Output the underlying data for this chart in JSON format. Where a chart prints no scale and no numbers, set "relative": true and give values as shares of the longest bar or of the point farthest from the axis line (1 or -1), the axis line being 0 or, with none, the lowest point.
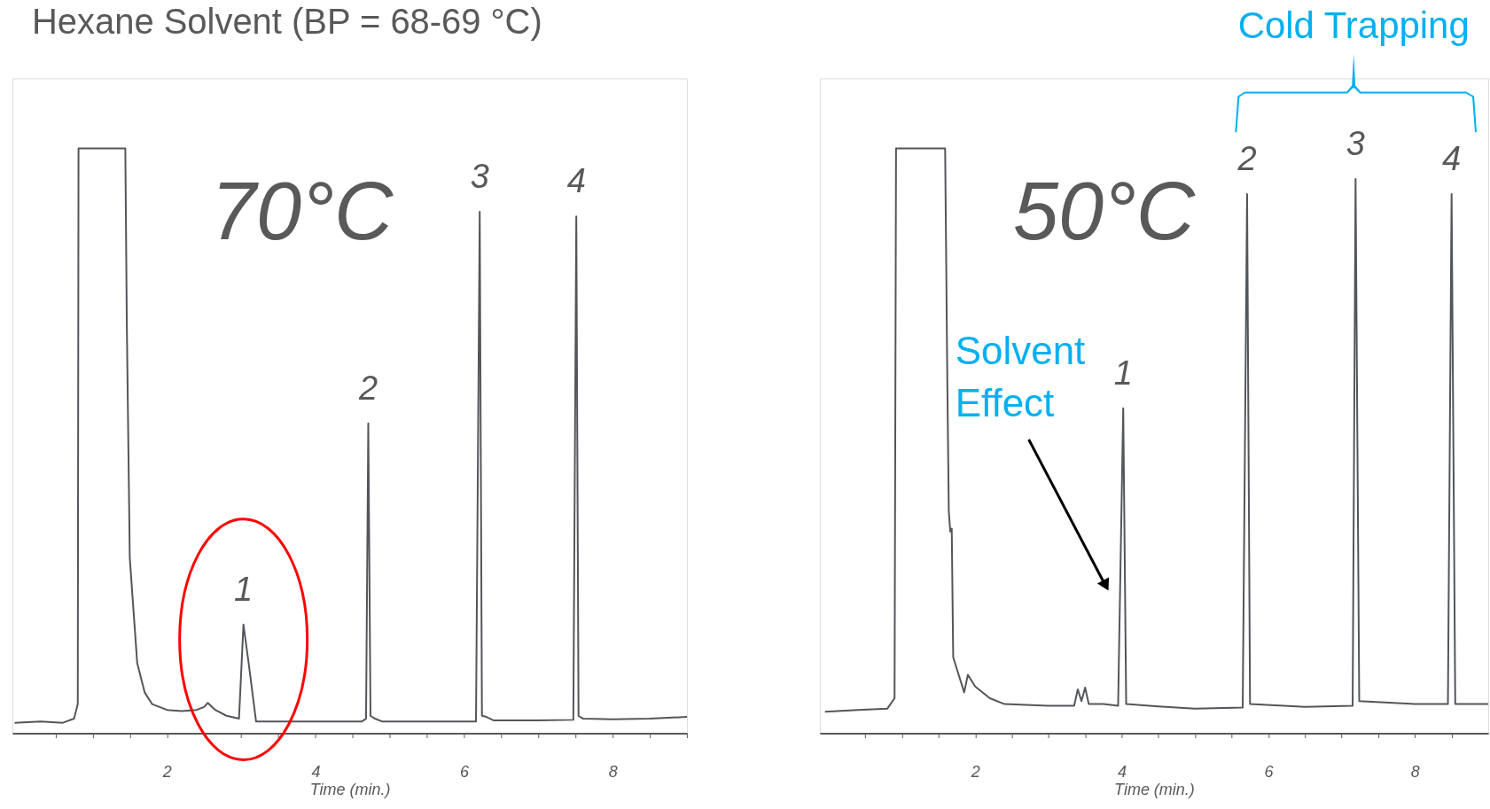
{
  "chart_data": [
    {
      "type": "line",
      "title": "Hexane Solvent (BP = 68-69 °C)",
      "xlabel": "Time (min.)",
      "relative": true,
      "xlim": [
        -0.08,
        9
      ],
      "xticks": [
        {
          "value": 0.5,
          "label": null
        },
        {
          "value": 1,
          "label": null
        },
        {
          "value": 1.5,
          "label": null
        },
        2,
        {
          "value": 2.5,
          "label": null
        },
        {
          "value": 3,
          "label": null
        },
        {
          "value": 3.5,
          "label": null
        },
        4,
        {
          "value": 4.5,
          "label": null
        },
        {
          "value": 5,
          "label": null
        },
        {
          "value": 5.5,
          "label": null
        },
        6,
        {
          "value": 6.5,
          "label": null
        },
        {
          "value": 7,
          "label": null
        },
        {
          "value": 7.5,
          "label": null
        },
        8,
        {
          "value": 8.5,
          "label": null
        },
        {
          "value": 9,
          "label": null
        }
      ],
      "annotations": [
        "70°C",
        {
          "text": "1",
          "x": 3.03,
          "y": 0.186
        },
        {
          "text": "2",
          "x": 4.71,
          "y": 0.53
        },
        {
          "text": "3",
          "x": 6.21,
          "y": 0.892
        },
        {
          "text": "4",
          "x": 7.51,
          "y": 0.884
        }
      ],
      "series": [
        {
          "color": "#53565a",
          "x": [
            -0.05,
            0.3,
            0.6,
            0.75,
            0.8,
            0.81,
            1.44,
            1.46,
            1.5,
            1.6,
            1.7,
            1.8,
            2.0,
            2.2,
            2.4,
            2.5,
            2.55,
            2.65,
            2.8,
            2.97,
            3.03,
            3.1,
            3.16,
            3.2,
            3.5,
            4.0,
            4.62,
            4.68,
            4.71,
            4.74,
            4.8,
            4.9,
            5.5,
            6.16,
            6.21,
            6.24,
            6.3,
            6.4,
            7.0,
            7.47,
            7.51,
            7.54,
            7.6,
            8.0,
            8.5,
            9.0
          ],
          "values": [
            0.018,
            0.02,
            0.018,
            0.025,
            0.05,
            1.0,
            1.0,
            0.7,
            0.3,
            0.12,
            0.07,
            0.05,
            0.04,
            0.038,
            0.04,
            0.045,
            0.052,
            0.04,
            0.03,
            0.025,
            0.186,
            0.12,
            0.06,
            0.02,
            0.02,
            0.02,
            0.02,
            0.025,
            0.53,
            0.03,
            0.025,
            0.02,
            0.02,
            0.02,
            0.892,
            0.03,
            0.028,
            0.022,
            0.022,
            0.023,
            0.884,
            0.03,
            0.025,
            0.024,
            0.025,
            0.028
          ]
        }
      ]
    },
    {
      "type": "line",
      "xlabel": "Time (min.)",
      "relative": true,
      "xlim": [
        -0.12,
        9
      ],
      "xticks": [
        {
          "value": 0.5,
          "label": null
        },
        {
          "value": 1,
          "label": null
        },
        {
          "value": 1.5,
          "label": null
        },
        2,
        {
          "value": 2.5,
          "label": null
        },
        {
          "value": 3,
          "label": null
        },
        {
          "value": 3.5,
          "label": null
        },
        4,
        {
          "value": 4.5,
          "label": null
        },
        {
          "value": 5,
          "label": null
        },
        {
          "value": 5.5,
          "label": null
        },
        6,
        {
          "value": 6.5,
          "label": null
        },
        {
          "value": 7,
          "label": null
        },
        {
          "value": 7.5,
          "label": null
        },
        8,
        {
          "value": 8.5,
          "label": null
        }
      ],
      "annotations": [
        "50°C",
        "Solvent\nEffect",
        "Cold Trapping",
        {
          "text": "1",
          "x": 4.02,
          "y": 0.556
        },
        {
          "text": "2",
          "x": 5.71,
          "y": 0.922
        },
        {
          "text": "3",
          "x": 7.19,
          "y": 0.948
        },
        {
          "text": "4",
          "x": 8.5,
          "y": 0.922
        }
      ],
      "series": [
        {
          "color": "#53565a",
          "x": [
            -0.05,
            0.4,
            0.8,
            0.9,
            0.92,
            1.59,
            1.62,
            1.64,
            1.66,
            1.68,
            1.7,
            1.75,
            1.85,
            1.9,
            2.0,
            2.2,
            2.4,
            3.0,
            3.35,
            3.4,
            3.45,
            3.5,
            3.55,
            3.75,
            3.95,
            4.02,
            4.06,
            4.5,
            5.0,
            5.65,
            5.71,
            5.75,
            6.5,
            7.15,
            7.19,
            7.24,
            8.0,
            8.45,
            8.5,
            8.55,
            9.0
          ],
          "values": [
            0.037,
            0.04,
            0.042,
            0.06,
            1.0,
            1.0,
            0.6,
            0.38,
            0.345,
            0.35,
            0.13,
            0.11,
            0.07,
            0.1,
            0.08,
            0.06,
            0.05,
            0.047,
            0.047,
            0.075,
            0.055,
            0.078,
            0.05,
            0.05,
            0.047,
            0.556,
            0.05,
            0.046,
            0.042,
            0.044,
            0.922,
            0.05,
            0.045,
            0.047,
            0.948,
            0.055,
            0.05,
            0.05,
            0.922,
            0.05,
            0.05
          ]
        }
      ]
    }
  ]
}
